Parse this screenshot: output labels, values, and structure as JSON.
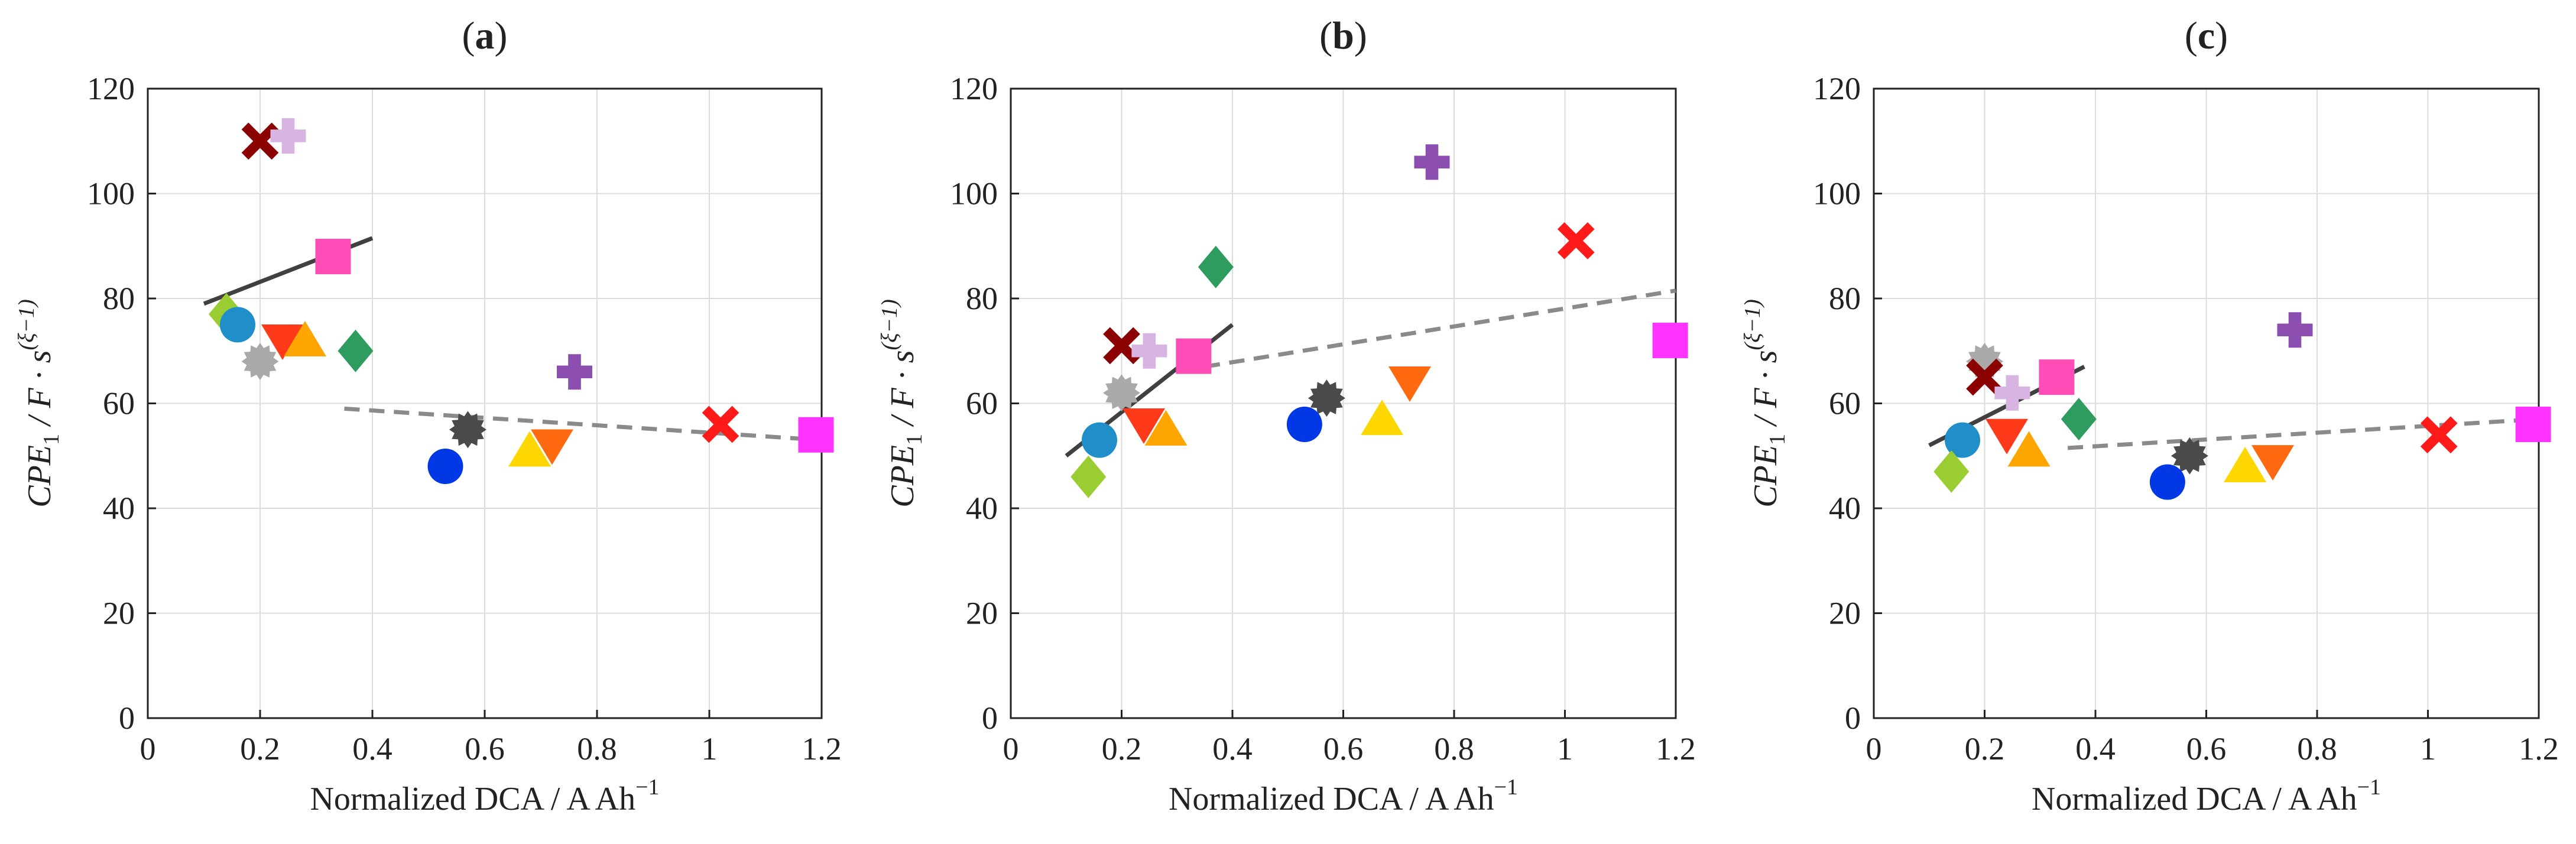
{
  "figure": {
    "panel_labels": [
      {
        "open": "(",
        "letter": "a",
        "close": ")"
      },
      {
        "open": "(",
        "letter": "b",
        "close": ")"
      },
      {
        "open": "(",
        "letter": "c",
        "close": ")"
      }
    ]
  },
  "axes": {
    "x_ticks": [
      "0",
      "0.2",
      "0.4",
      "0.6",
      "0.8",
      "1",
      "1.2"
    ],
    "y_ticks": [
      "0",
      "20",
      "40",
      "60",
      "80",
      "100",
      "120"
    ],
    "xlabel": {
      "main": "Normalized DCA / A Ah",
      "sup": "−1"
    },
    "ylabel": {
      "cpe": "CPE",
      "sub": "1",
      "mid": " / F · s",
      "sup": "(ξ−1)"
    }
  },
  "colors": {
    "maroon": "#8b0000",
    "lavender": "#d8b4e2",
    "pink": "#ff4db8",
    "light_green": "#9acd32",
    "cyan": "#1f8ec9",
    "gray_light": "#a9a9a9",
    "red_orange": "#ff3a1a",
    "orange": "#ffa500",
    "green": "#2e9b5f",
    "purple": "#8c4fb0",
    "gray_dark": "#4a4a4a",
    "blue": "#0038e6",
    "yellow": "#ffd700",
    "dark_orange": "#ff6a10",
    "red": "#ff1a1a",
    "magenta": "#ff33ff",
    "trend": "#404040",
    "trend_dashed": "#8a8a8a"
  },
  "chart_data": [
    {
      "type": "scatter",
      "title": "(a)",
      "xlabel": "Normalized DCA / A Ah−1",
      "ylabel": "CPE1 / F · s(ξ−1)",
      "xlim": [
        0,
        1.2
      ],
      "ylim": [
        0,
        120
      ],
      "grid": true,
      "points": [
        {
          "x": 0.2,
          "y": 110,
          "marker": "x",
          "color": "maroon"
        },
        {
          "x": 0.25,
          "y": 111,
          "marker": "plus",
          "color": "lavender"
        },
        {
          "x": 0.33,
          "y": 88,
          "marker": "square",
          "color": "pink"
        },
        {
          "x": 0.14,
          "y": 77,
          "marker": "diamond",
          "color": "light_green"
        },
        {
          "x": 0.16,
          "y": 75,
          "marker": "circle",
          "color": "cyan"
        },
        {
          "x": 0.2,
          "y": 68,
          "marker": "gear",
          "color": "gray_light"
        },
        {
          "x": 0.24,
          "y": 72,
          "marker": "triangle-down",
          "color": "red_orange"
        },
        {
          "x": 0.28,
          "y": 72,
          "marker": "triangle-up",
          "color": "orange"
        },
        {
          "x": 0.37,
          "y": 70,
          "marker": "diamond",
          "color": "green"
        },
        {
          "x": 0.76,
          "y": 66,
          "marker": "plus",
          "color": "purple"
        },
        {
          "x": 0.57,
          "y": 55,
          "marker": "gear",
          "color": "gray_dark"
        },
        {
          "x": 0.53,
          "y": 48,
          "marker": "circle",
          "color": "blue"
        },
        {
          "x": 0.68,
          "y": 51,
          "marker": "triangle-up",
          "color": "yellow"
        },
        {
          "x": 0.72,
          "y": 52,
          "marker": "triangle-down",
          "color": "dark_orange"
        },
        {
          "x": 1.02,
          "y": 56,
          "marker": "x",
          "color": "red"
        },
        {
          "x": 1.19,
          "y": 54,
          "marker": "square",
          "color": "magenta"
        }
      ],
      "fits": [
        {
          "x": [
            0.1,
            0.4
          ],
          "y": [
            79,
            91.5
          ],
          "style": "solid"
        },
        {
          "x": [
            0.35,
            1.2
          ],
          "y": [
            59,
            53
          ],
          "style": "dashed"
        }
      ]
    },
    {
      "type": "scatter",
      "title": "(b)",
      "xlabel": "Normalized DCA / A Ah−1",
      "ylabel": "CPE1 / F · s(ξ−1)",
      "xlim": [
        0,
        1.2
      ],
      "ylim": [
        0,
        120
      ],
      "grid": true,
      "points": [
        {
          "x": 0.76,
          "y": 106,
          "marker": "plus",
          "color": "purple"
        },
        {
          "x": 1.02,
          "y": 91,
          "marker": "x",
          "color": "red"
        },
        {
          "x": 0.37,
          "y": 86,
          "marker": "diamond",
          "color": "green"
        },
        {
          "x": 1.19,
          "y": 72,
          "marker": "square",
          "color": "magenta"
        },
        {
          "x": 0.2,
          "y": 71,
          "marker": "x",
          "color": "maroon"
        },
        {
          "x": 0.25,
          "y": 70,
          "marker": "plus",
          "color": "lavender"
        },
        {
          "x": 0.33,
          "y": 69,
          "marker": "square",
          "color": "pink"
        },
        {
          "x": 0.72,
          "y": 64,
          "marker": "triangle-down",
          "color": "dark_orange"
        },
        {
          "x": 0.2,
          "y": 62,
          "marker": "gear",
          "color": "gray_light"
        },
        {
          "x": 0.57,
          "y": 61,
          "marker": "gear",
          "color": "gray_dark"
        },
        {
          "x": 0.67,
          "y": 57,
          "marker": "triangle-up",
          "color": "yellow"
        },
        {
          "x": 0.24,
          "y": 56,
          "marker": "triangle-down",
          "color": "red_orange"
        },
        {
          "x": 0.53,
          "y": 56,
          "marker": "circle",
          "color": "blue"
        },
        {
          "x": 0.28,
          "y": 55,
          "marker": "triangle-up",
          "color": "orange"
        },
        {
          "x": 0.16,
          "y": 53,
          "marker": "circle",
          "color": "cyan"
        },
        {
          "x": 0.14,
          "y": 46,
          "marker": "diamond",
          "color": "light_green"
        }
      ],
      "fits": [
        {
          "x": [
            0.1,
            0.4
          ],
          "y": [
            50,
            75
          ],
          "style": "solid"
        },
        {
          "x": [
            0.35,
            1.2
          ],
          "y": [
            67,
            81.5
          ],
          "style": "dashed"
        }
      ]
    },
    {
      "type": "scatter",
      "title": "(c)",
      "xlabel": "Normalized DCA / A Ah−1",
      "ylabel": "CPE1 / F · s(ξ−1)",
      "xlim": [
        0,
        1.2
      ],
      "ylim": [
        0,
        120
      ],
      "grid": true,
      "points": [
        {
          "x": 0.76,
          "y": 74,
          "marker": "plus",
          "color": "purple"
        },
        {
          "x": 0.2,
          "y": 68,
          "marker": "gear",
          "color": "gray_light"
        },
        {
          "x": 0.33,
          "y": 65,
          "marker": "square",
          "color": "pink"
        },
        {
          "x": 0.2,
          "y": 65,
          "marker": "x",
          "color": "maroon"
        },
        {
          "x": 0.25,
          "y": 62,
          "marker": "plus",
          "color": "lavender"
        },
        {
          "x": 0.37,
          "y": 57,
          "marker": "diamond",
          "color": "green"
        },
        {
          "x": 1.19,
          "y": 56,
          "marker": "square",
          "color": "magenta"
        },
        {
          "x": 0.24,
          "y": 54,
          "marker": "triangle-down",
          "color": "red_orange"
        },
        {
          "x": 1.02,
          "y": 54,
          "marker": "x",
          "color": "red"
        },
        {
          "x": 0.16,
          "y": 53,
          "marker": "circle",
          "color": "cyan"
        },
        {
          "x": 0.28,
          "y": 51,
          "marker": "triangle-up",
          "color": "orange"
        },
        {
          "x": 0.57,
          "y": 50,
          "marker": "gear",
          "color": "gray_dark"
        },
        {
          "x": 0.72,
          "y": 49,
          "marker": "triangle-down",
          "color": "dark_orange"
        },
        {
          "x": 0.67,
          "y": 48,
          "marker": "triangle-up",
          "color": "yellow"
        },
        {
          "x": 0.14,
          "y": 47,
          "marker": "diamond",
          "color": "light_green"
        },
        {
          "x": 0.53,
          "y": 45,
          "marker": "circle",
          "color": "blue"
        }
      ],
      "fits": [
        {
          "x": [
            0.1,
            0.38
          ],
          "y": [
            52,
            67
          ],
          "style": "solid"
        },
        {
          "x": [
            0.35,
            1.2
          ],
          "y": [
            51.5,
            57
          ],
          "style": "dashed"
        }
      ]
    }
  ]
}
